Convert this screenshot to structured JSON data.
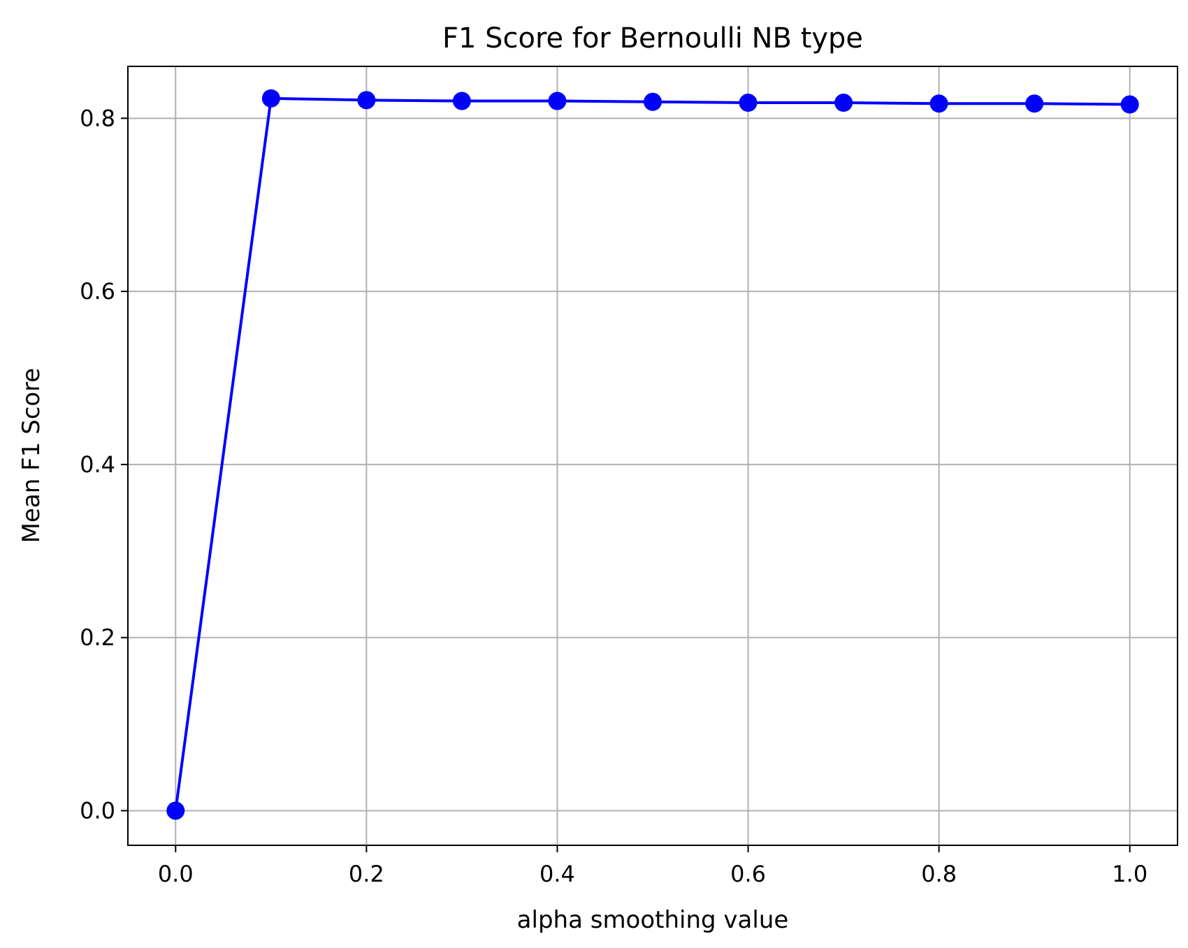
{
  "chart_data": {
    "type": "line",
    "title": "F1 Score for Bernoulli NB type",
    "xlabel": "alpha smoothing value",
    "ylabel": "Mean F1 Score",
    "xlim": [
      -0.05,
      1.05
    ],
    "ylim": [
      -0.04,
      0.86
    ],
    "xticks": [
      0.0,
      0.2,
      0.4,
      0.6,
      0.8,
      1.0
    ],
    "xtick_labels": [
      "0.0",
      "0.2",
      "0.4",
      "0.6",
      "0.8",
      "1.0"
    ],
    "yticks": [
      0.0,
      0.2,
      0.4,
      0.6,
      0.8
    ],
    "ytick_labels": [
      "0.0",
      "0.2",
      "0.4",
      "0.6",
      "0.8"
    ],
    "grid": true,
    "series": [
      {
        "color": "#0000ff",
        "marker": "circle",
        "x": [
          0.0,
          0.1,
          0.2,
          0.3,
          0.4,
          0.5,
          0.6,
          0.7,
          0.8,
          0.9,
          1.0
        ],
        "y": [
          0.0,
          0.823,
          0.821,
          0.82,
          0.82,
          0.819,
          0.818,
          0.818,
          0.817,
          0.817,
          0.816
        ]
      }
    ]
  }
}
